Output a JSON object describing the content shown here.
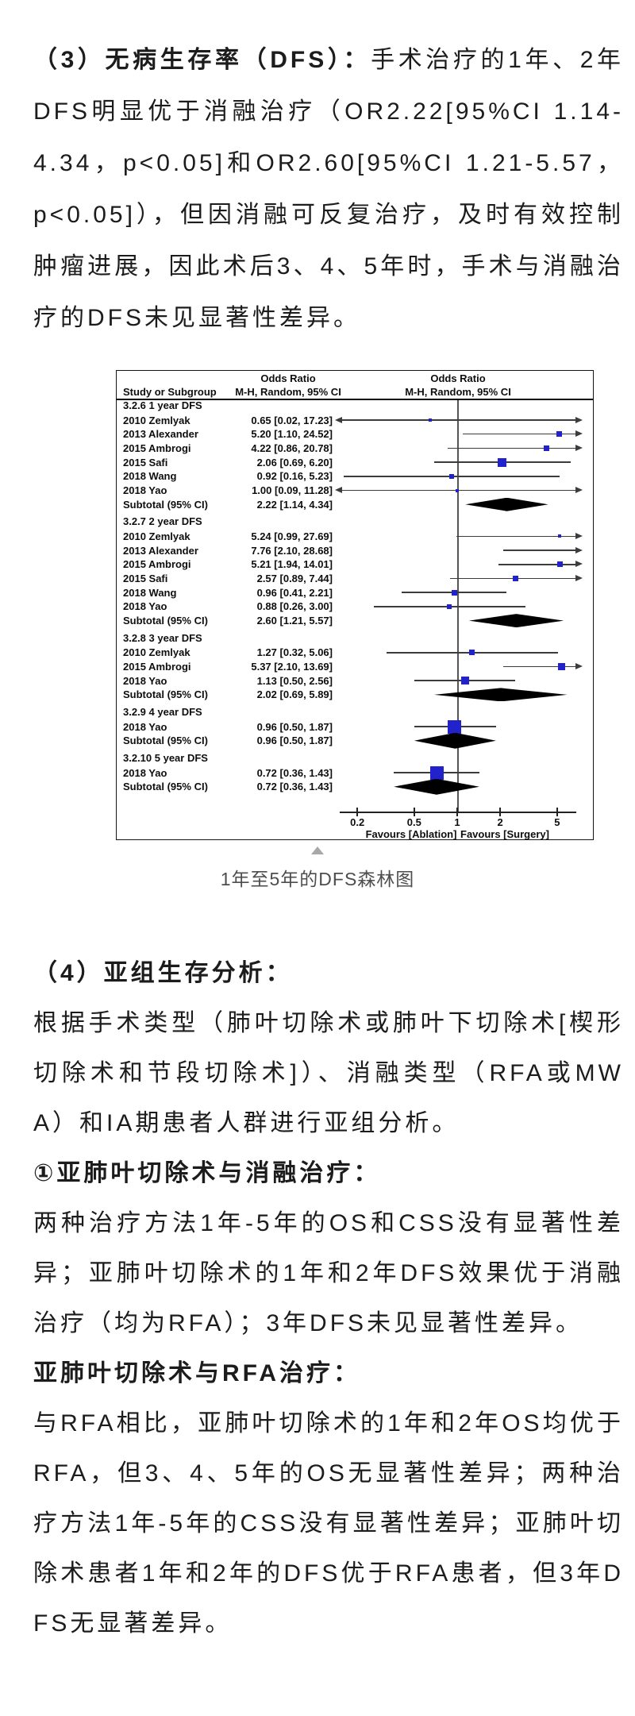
{
  "article": {
    "para1_lead": "（3）无病生存率（DFS）：",
    "para1_body": "手术治疗的1年、2年DFS明显优于消融治疗（OR2.22[95%CI 1.14-4.34，p<0.05]和OR2.60[95%CI 1.21-5.57，p<0.05]），但因消融可反复治疗，及时有效控制肿瘤进展，因此术后3、4、5年时，手术与消融治疗的DFS未见显著性差异。",
    "figure_caption": "1年至5年的DFS森林图",
    "section4_heading": "（4）亚组生存分析：",
    "section4_intro": "根据手术类型（肺叶切除术或肺叶下切除术[楔形切除术和节段切除术]）、消融类型（RFA或MWA）和IA期患者人群进行亚组分析。",
    "sub1_heading": "①亚肺叶切除术与消融治疗：",
    "sub1_text": "两种治疗方法1年-5年的OS和CSS没有显著性差异；亚肺叶切除术的1年和2年DFS效果优于消融治疗（均为RFA）；3年DFS未见显著性差异。",
    "sub2_heading": "亚肺叶切除术与RFA治疗：",
    "sub2_text": "与RFA相比，亚肺叶切除术的1年和2年OS均优于RFA，但3、4、5年的OS无显著性差异；两种治疗方法1年-5年的CSS没有显著性差异；亚肺叶切除术患者1年和2年的DFS优于RFA患者，但3年DFS无显著差异。"
  },
  "chart_data": {
    "type": "forest",
    "effect_measure": "Odds Ratio",
    "method": "M-H, Random, 95% CI",
    "study_column_header": "Study or Subgroup",
    "or_column_header_line1": "Odds Ratio",
    "or_column_header_line2": "M-H, Random, 95% CI",
    "plot_column_header_line1": "Odds Ratio",
    "plot_column_header_line2": "M-H, Random, 95% CI",
    "scale": "log",
    "axis_tick_labels": [
      "0.2",
      "0.5",
      "1",
      "2",
      "5"
    ],
    "axis_tick_values": [
      0.2,
      0.5,
      1,
      2,
      5
    ],
    "favours_left": "Favours [Ablation]",
    "favours_right": "Favours [Surgery]",
    "marker_color": "#2222cc",
    "diamond_color": "#000000",
    "groups": [
      {
        "name": "3.2.6 1 year DFS",
        "studies": [
          {
            "study": "2010 Zemlyak",
            "or": 0.65,
            "low": 0.02,
            "high": 17.23,
            "ci_text": "0.65 [0.02, 17.23]",
            "size": 4
          },
          {
            "study": "2013 Alexander",
            "or": 5.2,
            "low": 1.1,
            "high": 24.52,
            "ci_text": "5.20 [1.10, 24.52]",
            "size": 7
          },
          {
            "study": "2015 Ambrogi",
            "or": 4.22,
            "low": 0.86,
            "high": 20.78,
            "ci_text": "4.22 [0.86, 20.78]",
            "size": 7
          },
          {
            "study": "2015 Safi",
            "or": 2.06,
            "low": 0.69,
            "high": 6.2,
            "ci_text": "2.06 [0.69, 6.20]",
            "size": 11
          },
          {
            "study": "2018 Wang",
            "or": 0.92,
            "low": 0.16,
            "high": 5.23,
            "ci_text": "0.92 [0.16, 5.23]",
            "size": 6
          },
          {
            "study": "2018 Yao",
            "or": 1.0,
            "low": 0.09,
            "high": 11.28,
            "ci_text": "1.00 [0.09, 11.28]",
            "size": 4
          }
        ],
        "subtotal": {
          "label": "Subtotal (95% CI)",
          "or": 2.22,
          "low": 1.14,
          "high": 4.34,
          "ci_text": "2.22 [1.14, 4.34]",
          "height": 17
        }
      },
      {
        "name": "3.2.7 2 year DFS",
        "studies": [
          {
            "study": "2010 Zemlyak",
            "or": 5.24,
            "low": 0.99,
            "high": 27.69,
            "ci_text": "5.24 [0.99, 27.69]",
            "size": 4
          },
          {
            "study": "2013 Alexander",
            "or": 7.76,
            "low": 2.1,
            "high": 28.68,
            "ci_text": "7.76 [2.10, 28.68]",
            "size": 6
          },
          {
            "study": "2015 Ambrogi",
            "or": 5.21,
            "low": 1.94,
            "high": 14.01,
            "ci_text": "5.21 [1.94, 14.01]",
            "size": 7
          },
          {
            "study": "2015 Safi",
            "or": 2.57,
            "low": 0.89,
            "high": 7.44,
            "ci_text": "2.57 [0.89, 7.44]",
            "size": 7
          },
          {
            "study": "2018 Wang",
            "or": 0.96,
            "low": 0.41,
            "high": 2.21,
            "ci_text": "0.96 [0.41, 2.21]",
            "size": 7
          },
          {
            "study": "2018 Yao",
            "or": 0.88,
            "low": 0.26,
            "high": 3.0,
            "ci_text": "0.88 [0.26, 3.00]",
            "size": 6
          }
        ],
        "subtotal": {
          "label": "Subtotal (95% CI)",
          "or": 2.6,
          "low": 1.21,
          "high": 5.57,
          "ci_text": "2.60 [1.21, 5.57]",
          "height": 17
        }
      },
      {
        "name": "3.2.8 3 year DFS",
        "studies": [
          {
            "study": "2010 Zemlyak",
            "or": 1.27,
            "low": 0.32,
            "high": 5.06,
            "ci_text": "1.27 [0.32, 5.06]",
            "size": 7
          },
          {
            "study": "2015 Ambrogi",
            "or": 5.37,
            "low": 2.1,
            "high": 13.69,
            "ci_text": "5.37 [2.10, 13.69]",
            "size": 9
          },
          {
            "study": "2018 Yao",
            "or": 1.13,
            "low": 0.5,
            "high": 2.56,
            "ci_text": "1.13 [0.50, 2.56]",
            "size": 10
          }
        ],
        "subtotal": {
          "label": "Subtotal (95% CI)",
          "or": 2.02,
          "low": 0.69,
          "high": 5.89,
          "ci_text": "2.02 [0.69, 5.89]",
          "height": 17
        }
      },
      {
        "name": "3.2.9 4 year DFS",
        "studies": [
          {
            "study": "2018 Yao",
            "or": 0.96,
            "low": 0.5,
            "high": 1.87,
            "ci_text": "0.96 [0.50, 1.87]",
            "size": 17
          }
        ],
        "subtotal": {
          "label": "Subtotal (95% CI)",
          "or": 0.96,
          "low": 0.5,
          "high": 1.87,
          "ci_text": "0.96 [0.50, 1.87]",
          "height": 20
        }
      },
      {
        "name": "3.2.10 5 year DFS",
        "studies": [
          {
            "study": "2018 Yao",
            "or": 0.72,
            "low": 0.36,
            "high": 1.43,
            "ci_text": "0.72 [0.36, 1.43]",
            "size": 17
          }
        ],
        "subtotal": {
          "label": "Subtotal (95% CI)",
          "or": 0.72,
          "low": 0.36,
          "high": 1.43,
          "ci_text": "0.72 [0.36, 1.43]",
          "height": 20
        }
      }
    ]
  }
}
